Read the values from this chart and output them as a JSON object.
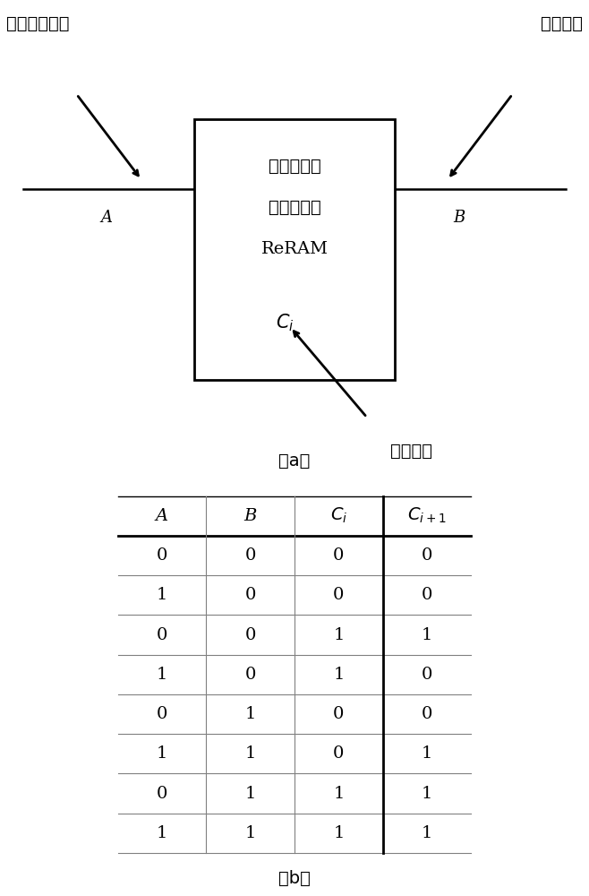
{
  "bg_color": "#ffffff",
  "box_line1": "电阵式随机",
  "box_line2": "存取存储器",
  "box_line3": "ReRAM",
  "label_A": "A",
  "label_B": "B",
  "label_top_left": "访问控制信号",
  "label_top_right": "写入信号",
  "label_bottom": "写入信号",
  "caption_a": "（a）",
  "caption_b": "（b）",
  "table_data": [
    [
      0,
      0,
      0,
      0
    ],
    [
      1,
      0,
      0,
      0
    ],
    [
      0,
      0,
      1,
      1
    ],
    [
      1,
      0,
      1,
      0
    ],
    [
      0,
      1,
      0,
      0
    ],
    [
      1,
      1,
      0,
      1
    ],
    [
      0,
      1,
      1,
      1
    ],
    [
      1,
      1,
      1,
      1
    ]
  ]
}
